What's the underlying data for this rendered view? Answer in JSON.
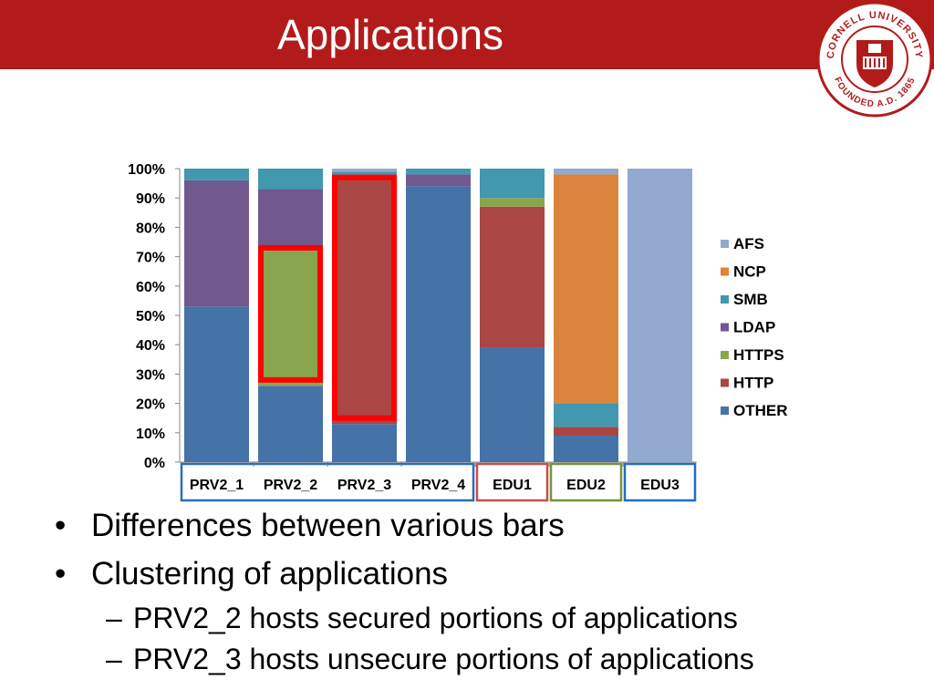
{
  "slide": {
    "title": "Applications",
    "bullets": [
      "Differences between various bars",
      "Clustering of applications"
    ],
    "sub_bullets": [
      "PRV2_2 hosts secured portions of applications",
      "PRV2_3 hosts unsecure portions of applications"
    ]
  },
  "logo": {
    "text_top": "CORNELL UNIVERSITY",
    "text_bottom": "FOUNDED A.D. 1865",
    "color": "#B31B1B"
  },
  "chart_data": {
    "type": "bar",
    "stacked": true,
    "categories": [
      "PRV2_1",
      "PRV2_2",
      "PRV2_3",
      "PRV2_4",
      "EDU1",
      "EDU2",
      "EDU3"
    ],
    "yticks": [
      "0%",
      "10%",
      "20%",
      "30%",
      "40%",
      "50%",
      "60%",
      "70%",
      "80%",
      "90%",
      "100%"
    ],
    "ylim": [
      0,
      100
    ],
    "legend_position": "right",
    "series": [
      {
        "name": "OTHER",
        "color": "#4572A7",
        "values": [
          53,
          26,
          13,
          94,
          39,
          9,
          0
        ]
      },
      {
        "name": "HTTP",
        "color": "#AA4643",
        "values": [
          0,
          0,
          84,
          0,
          48,
          3,
          0
        ]
      },
      {
        "name": "HTTPS",
        "color": "#89A54E",
        "values": [
          0,
          46,
          0,
          0,
          3,
          0,
          0
        ]
      },
      {
        "name": "LDAP",
        "color": "#71588F",
        "values": [
          43,
          21,
          1,
          4,
          0,
          0,
          0
        ]
      },
      {
        "name": "SMB",
        "color": "#4198AF",
        "values": [
          4,
          7,
          1,
          2,
          10,
          8,
          0
        ]
      },
      {
        "name": "NCP",
        "color": "#DB843D",
        "values": [
          0,
          0,
          0,
          0,
          0,
          78,
          0
        ]
      },
      {
        "name": "AFS",
        "color": "#93A9CF",
        "values": [
          0,
          0,
          1,
          0,
          0,
          2,
          100
        ]
      }
    ],
    "highlights": [
      {
        "category": "PRV2_2",
        "from": 28,
        "to": 73,
        "color": "#FF0000"
      },
      {
        "category": "PRV2_3",
        "from": 15,
        "to": 97,
        "color": "#FF0000"
      }
    ],
    "category_boxes": [
      {
        "categories": [
          "PRV2_1",
          "PRV2_2",
          "PRV2_3",
          "PRV2_4"
        ],
        "color": "#2E6DB4"
      },
      {
        "categories": [
          "EDU1"
        ],
        "color": "#C0504D"
      },
      {
        "categories": [
          "EDU2"
        ],
        "color": "#77933C"
      },
      {
        "categories": [
          "EDU3"
        ],
        "color": "#1F6FC5"
      }
    ]
  }
}
